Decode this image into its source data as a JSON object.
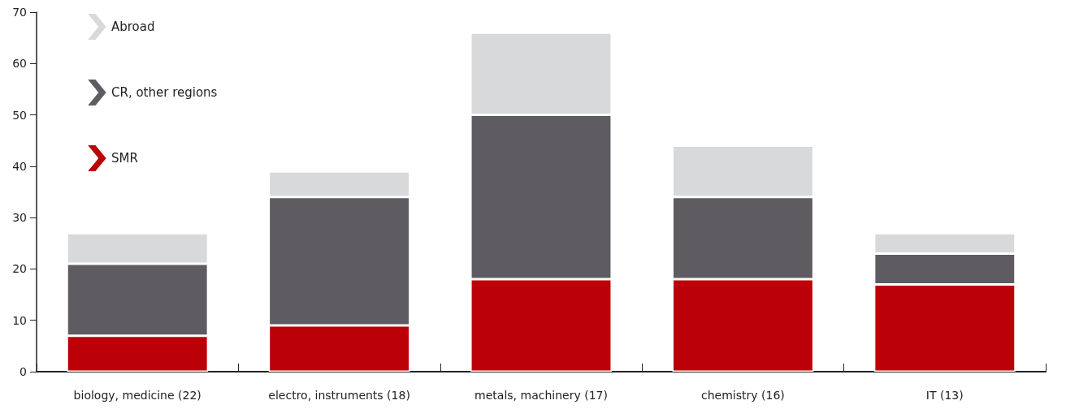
{
  "chart_data": {
    "type": "bar",
    "stacked": true,
    "categories": [
      "biology, medicine (22)",
      "electro, instruments (18)",
      "metals, machinery (17)",
      "chemistry (16)",
      "IT (13)"
    ],
    "series": [
      {
        "name": "SMR",
        "color": "#bb0008",
        "values": [
          7,
          9,
          18,
          18,
          17
        ]
      },
      {
        "name": "CR, other regions",
        "color": "#5e5c60",
        "values": [
          14,
          25,
          32,
          16,
          6
        ]
      },
      {
        "name": "Abroad",
        "color": "#d7d9da",
        "values": [
          6,
          5,
          16,
          10,
          4
        ]
      }
    ],
    "ylim": [
      0,
      70
    ],
    "yticks": [
      0,
      10,
      20,
      30,
      40,
      50,
      60,
      70
    ],
    "grid": false,
    "legend": "top left"
  }
}
